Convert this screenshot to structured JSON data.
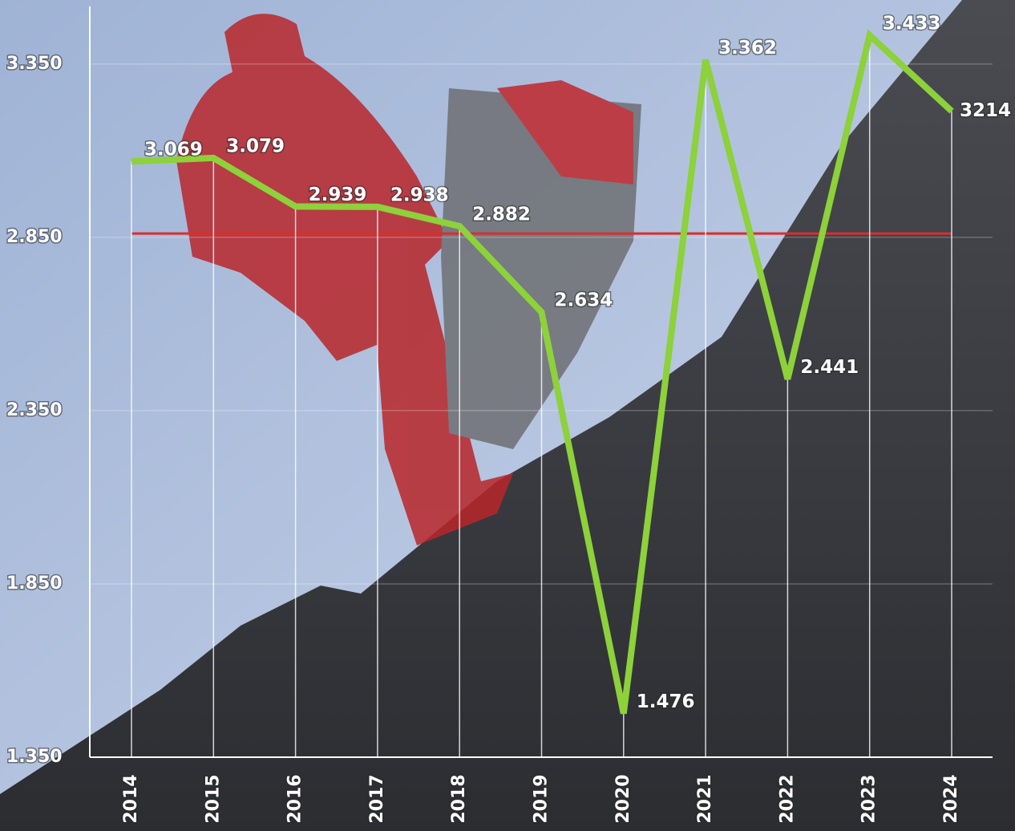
{
  "chart_data": {
    "type": "line",
    "categories": [
      "2014",
      "2015",
      "2016",
      "2017",
      "2018",
      "2019",
      "2020",
      "2021",
      "2022",
      "2023",
      "2024"
    ],
    "values": [
      3069,
      3079,
      2939,
      2938,
      2882,
      2634,
      1476,
      3362,
      2441,
      3433,
      3214
    ],
    "value_labels": [
      "3.069",
      "3.079",
      "2.939",
      "2.938",
      "2.882",
      "2.634",
      "1.476",
      "3.362",
      "2.441",
      "3.433",
      "3214"
    ],
    "color": "#8dd13b",
    "reference_line": {
      "value": 2861,
      "color": "#d6302c"
    },
    "ylim": [
      1350,
      3500
    ],
    "yticks": [
      {
        "value": 1350,
        "label": "1.350"
      },
      {
        "value": 1850,
        "label": "1.850"
      },
      {
        "value": 2350,
        "label": "2.350"
      },
      {
        "value": 2850,
        "label": "2.850"
      },
      {
        "value": 3350,
        "label": "3.350"
      }
    ],
    "grid": true
  }
}
